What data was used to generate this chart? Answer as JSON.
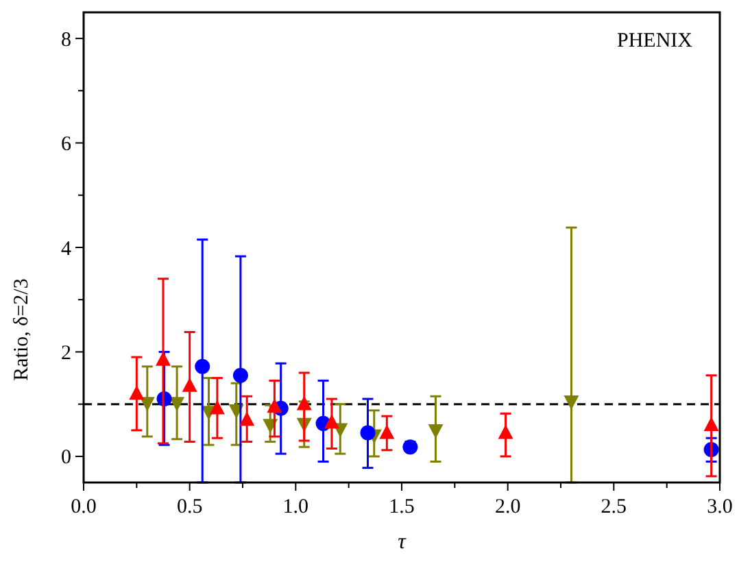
{
  "chart_data": {
    "type": "scatter",
    "xlabel": "τ",
    "ylabel": "Ratio,  δ=2/3",
    "annotations": [
      "PHENIX"
    ],
    "xlim": [
      0,
      3
    ],
    "ylim": [
      -0.5,
      8.5
    ],
    "xticks": [
      {
        "value": 0,
        "label": "0.0"
      },
      {
        "value": 0.25,
        "label": null
      },
      {
        "value": 0.5,
        "label": "0.5"
      },
      {
        "value": 0.75,
        "label": null
      },
      {
        "value": 1,
        "label": "1.0"
      },
      {
        "value": 1.25,
        "label": null
      },
      {
        "value": 1.5,
        "label": "1.5"
      },
      {
        "value": 1.75,
        "label": null
      },
      {
        "value": 2,
        "label": "2.0"
      },
      {
        "value": 2.25,
        "label": null
      },
      {
        "value": 2.5,
        "label": "2.5"
      },
      {
        "value": 2.75,
        "label": null
      },
      {
        "value": 3,
        "label": "3.0"
      }
    ],
    "yticks": [
      0,
      {
        "value": 1,
        "label": null
      },
      2,
      {
        "value": 3,
        "label": null
      },
      4,
      {
        "value": 5,
        "label": null
      },
      6,
      {
        "value": 7,
        "label": null
      },
      8
    ],
    "grid": false,
    "ref_lines": [
      {
        "axis": "y",
        "value": 1,
        "label": null,
        "color": "#000000",
        "line_style": "dashed"
      }
    ],
    "series": [
      {
        "color": "#ff0000",
        "marker": "triangle",
        "x": [
          0.25,
          0.375,
          0.5,
          0.63,
          0.77,
          0.9,
          1.04,
          1.17,
          1.43,
          1.99,
          2.96
        ],
        "values": [
          1.2,
          1.85,
          1.35,
          0.92,
          0.7,
          0.95,
          1.0,
          0.65,
          0.45,
          0.45,
          0.6
        ],
        "errors": [
          [
            0.5,
            1.9
          ],
          [
            0.25,
            3.4
          ],
          [
            0.28,
            2.38
          ],
          [
            0.35,
            1.5
          ],
          [
            0.28,
            1.15
          ],
          [
            0.38,
            1.45
          ],
          [
            0.3,
            1.6
          ],
          [
            0.15,
            1.1
          ],
          [
            0.12,
            0.77
          ],
          [
            0.0,
            0.82
          ],
          [
            -0.38,
            1.55
          ]
        ]
      },
      {
        "color": "#0000ff",
        "marker": "circle",
        "x": [
          0.38,
          0.56,
          0.74,
          0.93,
          1.13,
          1.34,
          1.54,
          2.96
        ],
        "values": [
          1.1,
          1.72,
          1.55,
          0.92,
          0.63,
          0.45,
          0.18,
          0.13
        ],
        "errors": [
          [
            0.22,
            2.0
          ],
          [
            -0.5,
            4.15
          ],
          [
            -0.5,
            3.83
          ],
          [
            0.05,
            1.78
          ],
          [
            -0.1,
            1.45
          ],
          [
            -0.22,
            1.1
          ],
          [
            0.1,
            0.28
          ],
          [
            -0.1,
            0.35
          ]
        ]
      },
      {
        "color": "#808000",
        "marker": "triangle-down",
        "x": [
          0.3,
          0.44,
          0.59,
          0.72,
          0.88,
          1.04,
          1.21,
          1.37,
          1.66,
          2.3
        ],
        "values": [
          1.02,
          1.02,
          0.85,
          0.88,
          0.6,
          0.62,
          0.52,
          0.4,
          0.5,
          1.05
        ],
        "errors": [
          [
            0.38,
            1.72
          ],
          [
            0.33,
            1.72
          ],
          [
            0.22,
            1.5
          ],
          [
            0.22,
            1.4
          ],
          [
            0.28,
            0.98
          ],
          [
            0.18,
            1.05
          ],
          [
            0.05,
            1.0
          ],
          [
            0.0,
            0.88
          ],
          [
            -0.1,
            1.15
          ],
          [
            -0.5,
            4.38
          ]
        ]
      }
    ]
  }
}
